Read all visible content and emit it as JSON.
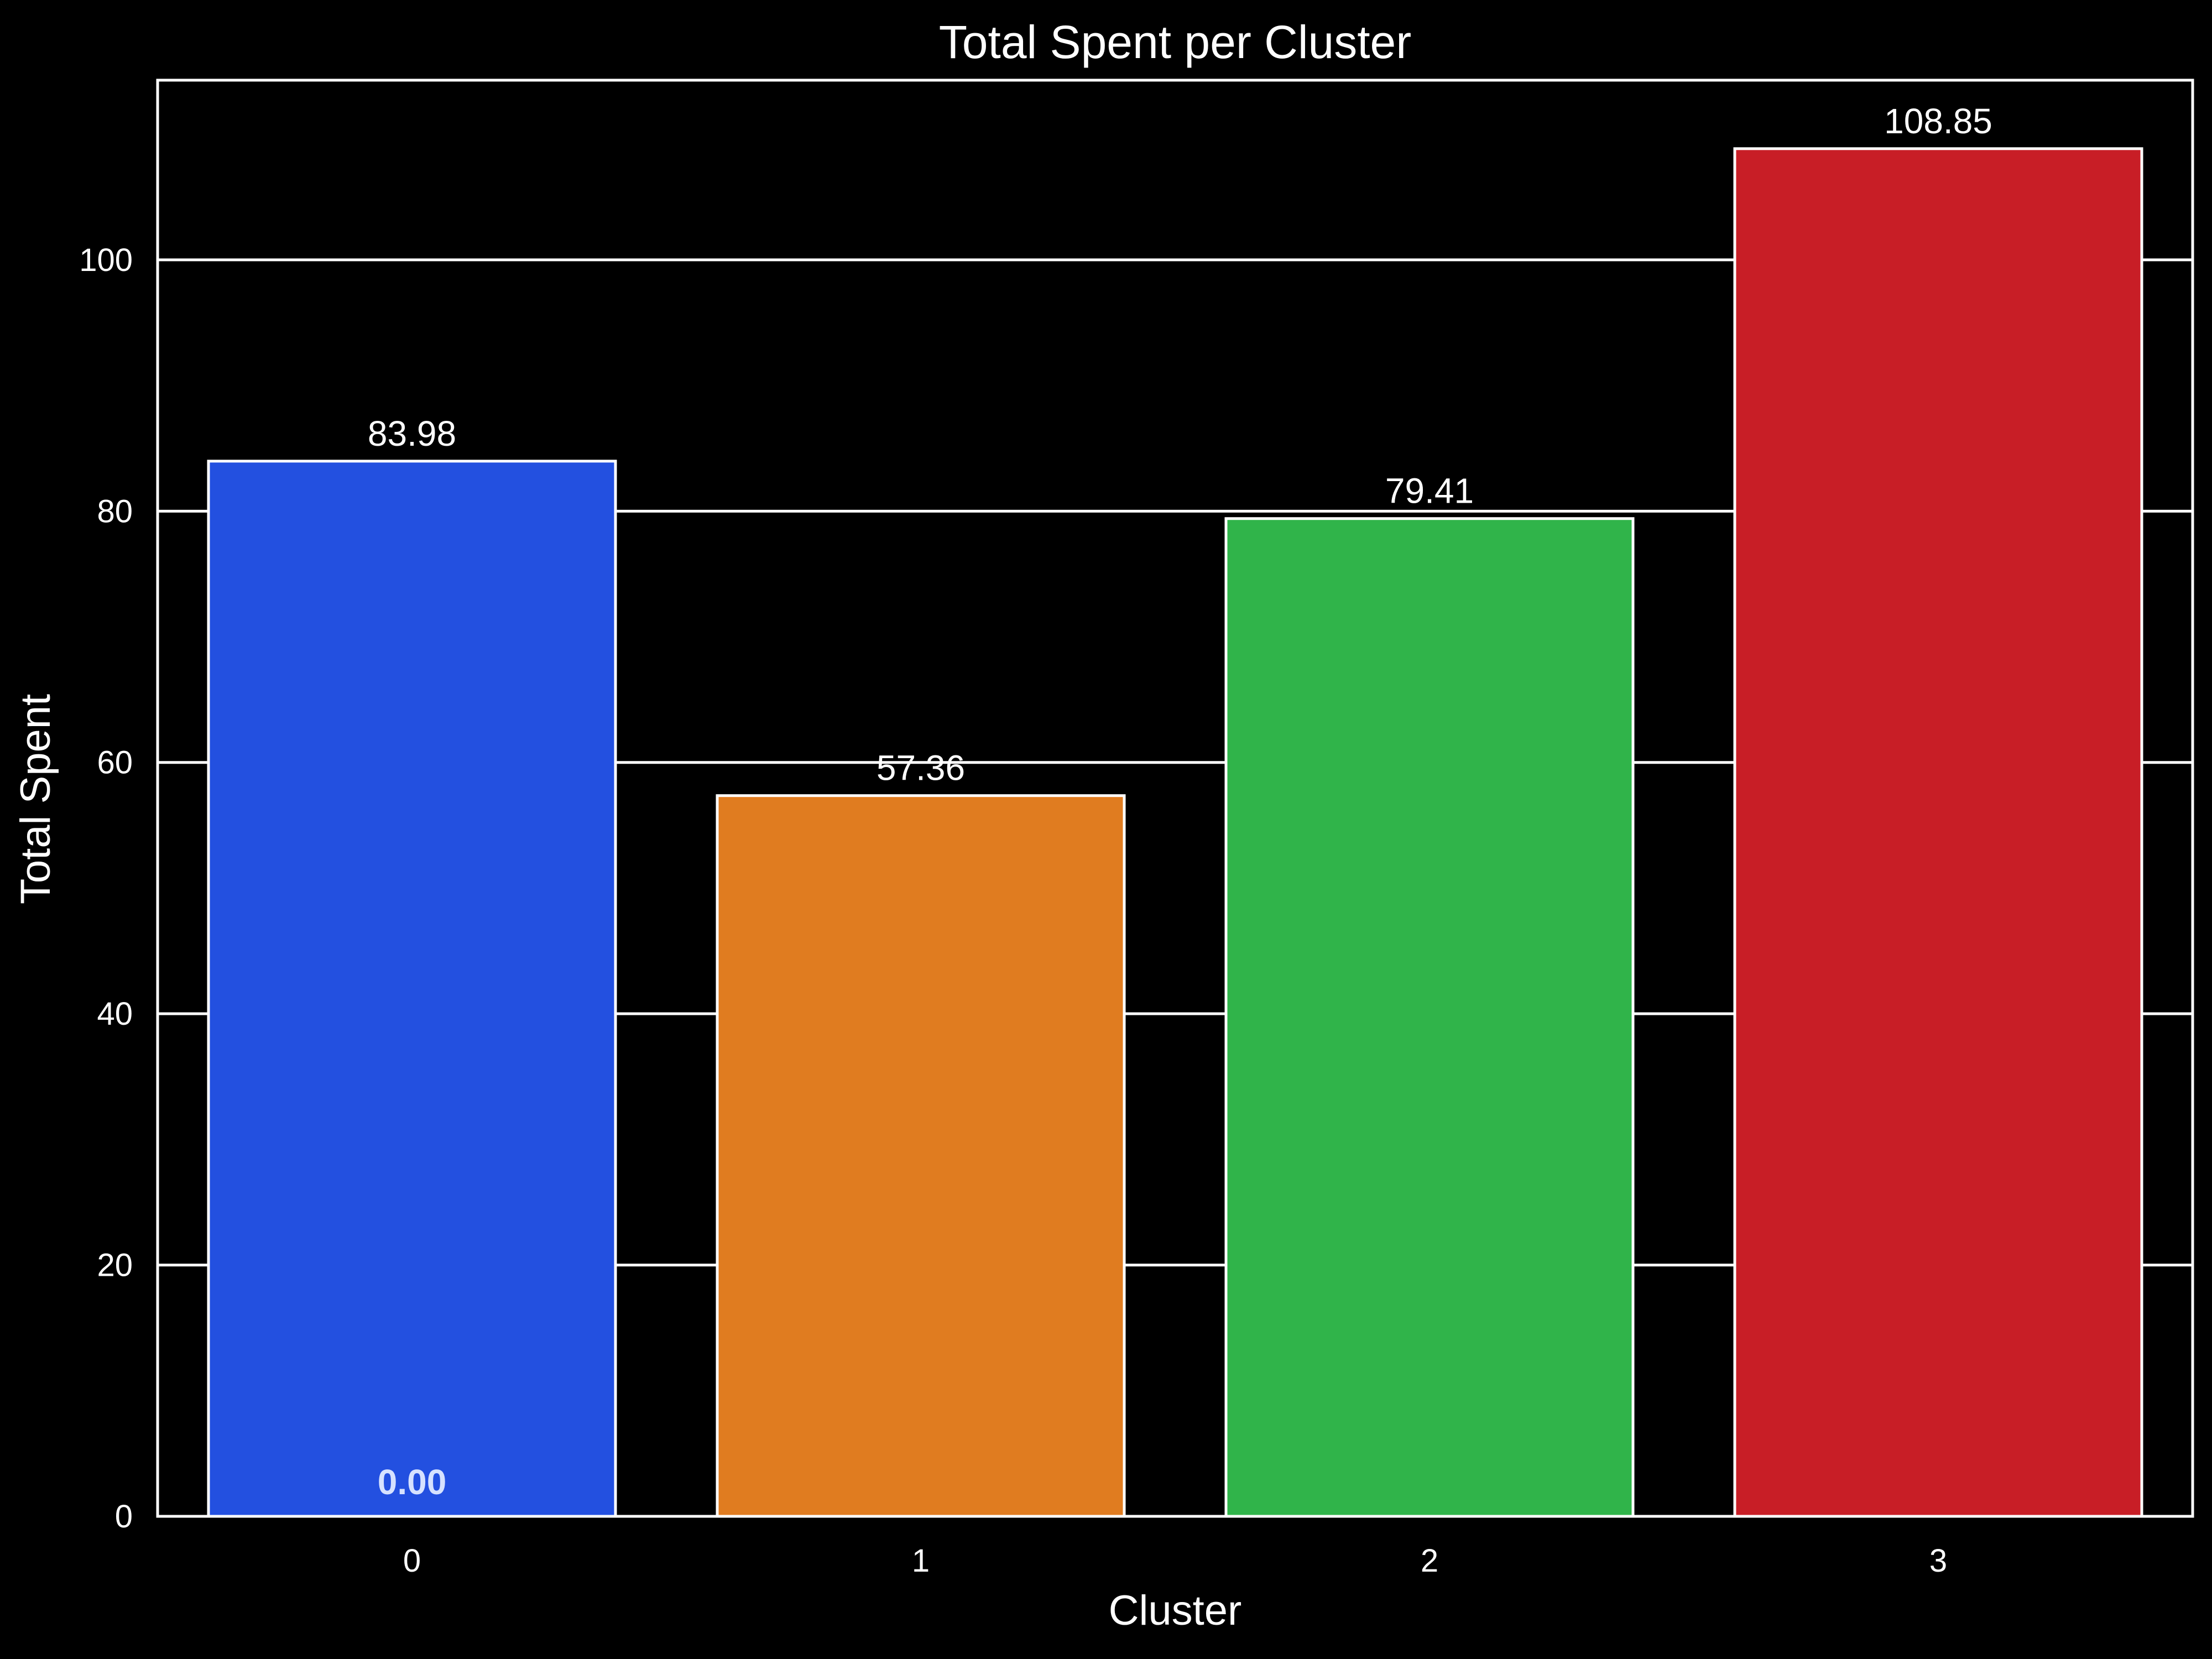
{
  "chart_data": {
    "type": "bar",
    "title": "Total Spent per Cluster",
    "xlabel": "Cluster",
    "ylabel": "Total Spent",
    "categories": [
      "0",
      "1",
      "2",
      "3"
    ],
    "values": [
      83.98,
      57.36,
      79.41,
      108.85
    ],
    "value_labels": [
      "83.98",
      "57.36",
      "79.41",
      "108.85"
    ],
    "extra_annotation": {
      "category": "0",
      "text": "0.00",
      "color": "#d6e2ff"
    },
    "bar_colors": [
      "#2350e0",
      "#e07c20",
      "#30b44a",
      "#c81e26"
    ],
    "ylim": [
      0,
      114.3
    ],
    "yticks": [
      0,
      20,
      40,
      60,
      80,
      100
    ],
    "ytick_labels": [
      "0",
      "20",
      "40",
      "60",
      "80",
      "100"
    ],
    "grid": true,
    "legend": "none",
    "background": "#000000",
    "foreground": "#ffffff"
  }
}
